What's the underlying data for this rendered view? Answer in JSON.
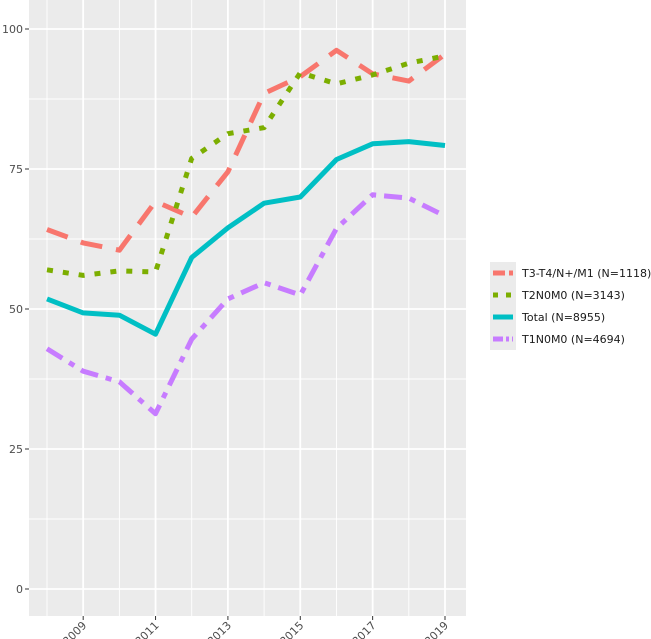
{
  "chart_data": {
    "type": "line",
    "title": "",
    "xlabel": "",
    "ylabel": "",
    "x": [
      2008,
      2009,
      2010,
      2011,
      2012,
      2013,
      2014,
      2015,
      2016,
      2017,
      2018,
      2019
    ],
    "xlim": [
      2007.9,
      2019.1
    ],
    "ylim": [
      0,
      100
    ],
    "x_ticks": [
      "2009",
      "2011",
      "2013",
      "2015",
      "2017",
      "2019"
    ],
    "y_ticks": [
      "0",
      "25",
      "50",
      "75",
      "100"
    ],
    "grid": true,
    "legend_position": "right",
    "series": [
      {
        "name": "T3-T4/N+/M1 (N=1118)",
        "color": "#F8766D",
        "style": "dashed",
        "values": [
          64.2,
          61.8,
          60.5,
          69.2,
          66.4,
          74.5,
          88.5,
          91.5,
          96.2,
          92.0,
          90.7,
          95.5
        ]
      },
      {
        "name": "T2N0M0 (N=3143)",
        "color": "#7CAE00",
        "style": "dotted",
        "values": [
          57.0,
          56.0,
          56.8,
          56.6,
          76.9,
          81.3,
          82.4,
          92.2,
          90.2,
          91.8,
          93.9,
          95.2
        ]
      },
      {
        "name": "Total (N=8955)",
        "color": "#00BFC4",
        "style": "solid",
        "values": [
          51.8,
          49.3,
          48.9,
          45.5,
          59.2,
          64.5,
          68.9,
          70.0,
          76.7,
          79.5,
          79.9,
          79.2
        ]
      },
      {
        "name": "T1N0M0 (N=4694)",
        "color": "#C77CFF",
        "style": "dashdot",
        "values": [
          42.9,
          38.9,
          37.0,
          31.3,
          44.6,
          51.8,
          54.7,
          52.5,
          64.4,
          70.4,
          69.8,
          66.6
        ]
      }
    ]
  }
}
